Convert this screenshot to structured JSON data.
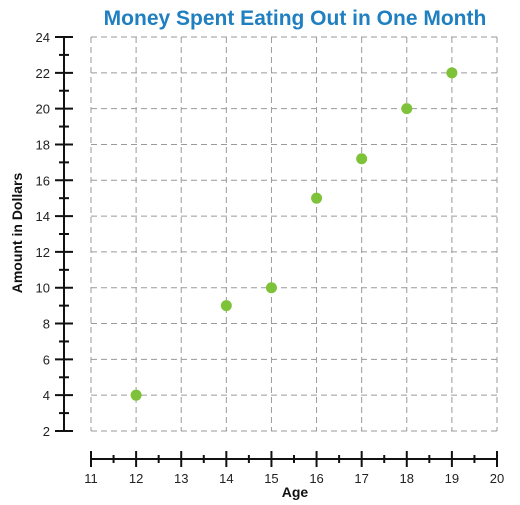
{
  "chart_data": {
    "type": "scatter",
    "title": "Money Spent Eating Out in One Month",
    "xlabel": "Age",
    "ylabel": "Amount in Dollars",
    "xlim": [
      11,
      20
    ],
    "ylim": [
      2,
      24
    ],
    "x_ticks": [
      11,
      12,
      13,
      14,
      15,
      16,
      17,
      18,
      19,
      20
    ],
    "x_tick_labels": [
      "11",
      "12",
      "13",
      "14",
      "15",
      "16",
      "17",
      "18",
      "19",
      "20"
    ],
    "y_ticks": [
      2,
      4,
      6,
      8,
      10,
      12,
      14,
      16,
      18,
      20,
      22,
      24
    ],
    "y_tick_labels": [
      "2",
      "4",
      "6",
      "8",
      "10",
      "12",
      "14",
      "16",
      "18",
      "20",
      "22",
      "24"
    ],
    "y_minor_step": 1,
    "x_minor_step": 0.5,
    "grid": true,
    "grid_style": "dashed",
    "points": [
      {
        "x": 12,
        "y": 4
      },
      {
        "x": 14,
        "y": 9
      },
      {
        "x": 15,
        "y": 10
      },
      {
        "x": 16,
        "y": 15
      },
      {
        "x": 17,
        "y": 17.2
      },
      {
        "x": 18,
        "y": 20
      },
      {
        "x": 19,
        "y": 22
      }
    ]
  },
  "colors": {
    "title": "#1f7fc0",
    "point": "#7ec23a",
    "grid": "#9a9a9a",
    "axis": "#111111"
  }
}
